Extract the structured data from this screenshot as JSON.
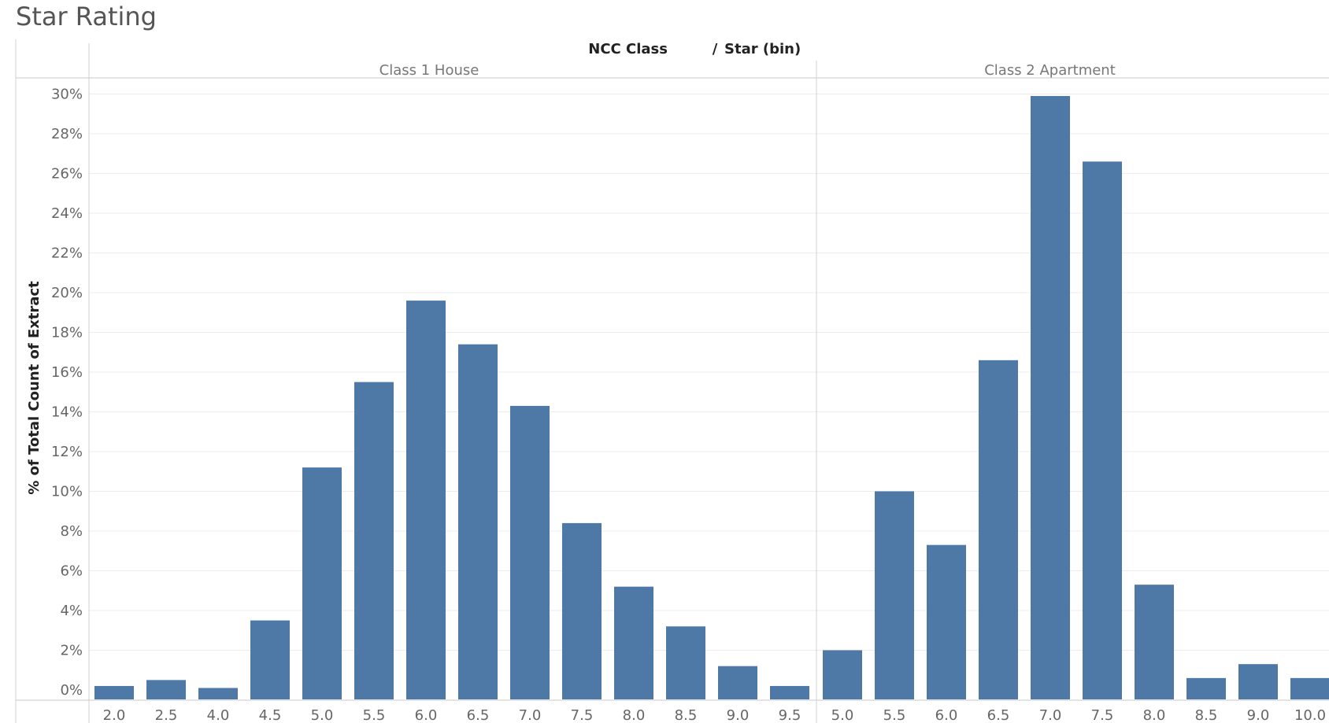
{
  "page": {
    "title": "Star Rating"
  },
  "chart_data": {
    "type": "bar",
    "header": {
      "field": "NCC Class",
      "separator": "/",
      "bin_field": "Star (bin)"
    },
    "ylabel": "% of Total Count of Extract",
    "ylim": [
      -1.2,
      31.5
    ],
    "yticks": [
      "0%",
      "2%",
      "4%",
      "6%",
      "8%",
      "10%",
      "12%",
      "14%",
      "16%",
      "18%",
      "20%",
      "22%",
      "24%",
      "26%",
      "28%",
      "30%"
    ],
    "grid": true,
    "bar_color": "#4e79a7",
    "panes": [
      {
        "name": "Class 1 House",
        "categories": [
          "2.0",
          "2.5",
          "4.0",
          "4.5",
          "5.0",
          "5.5",
          "6.0",
          "6.5",
          "7.0",
          "7.5",
          "8.0",
          "8.5",
          "9.0",
          "9.5"
        ],
        "values": [
          0.2,
          0.5,
          0.1,
          3.5,
          11.2,
          15.5,
          19.6,
          17.4,
          14.3,
          8.4,
          5.2,
          3.2,
          1.2,
          0.2
        ]
      },
      {
        "name": "Class 2 Apartment",
        "categories": [
          "5.0",
          "5.5",
          "6.0",
          "6.5",
          "7.0",
          "7.5",
          "8.0",
          "8.5",
          "9.0",
          "10.0"
        ],
        "values": [
          2.0,
          10.0,
          7.3,
          16.6,
          29.9,
          26.6,
          5.3,
          0.6,
          1.3,
          0.6
        ]
      }
    ]
  }
}
